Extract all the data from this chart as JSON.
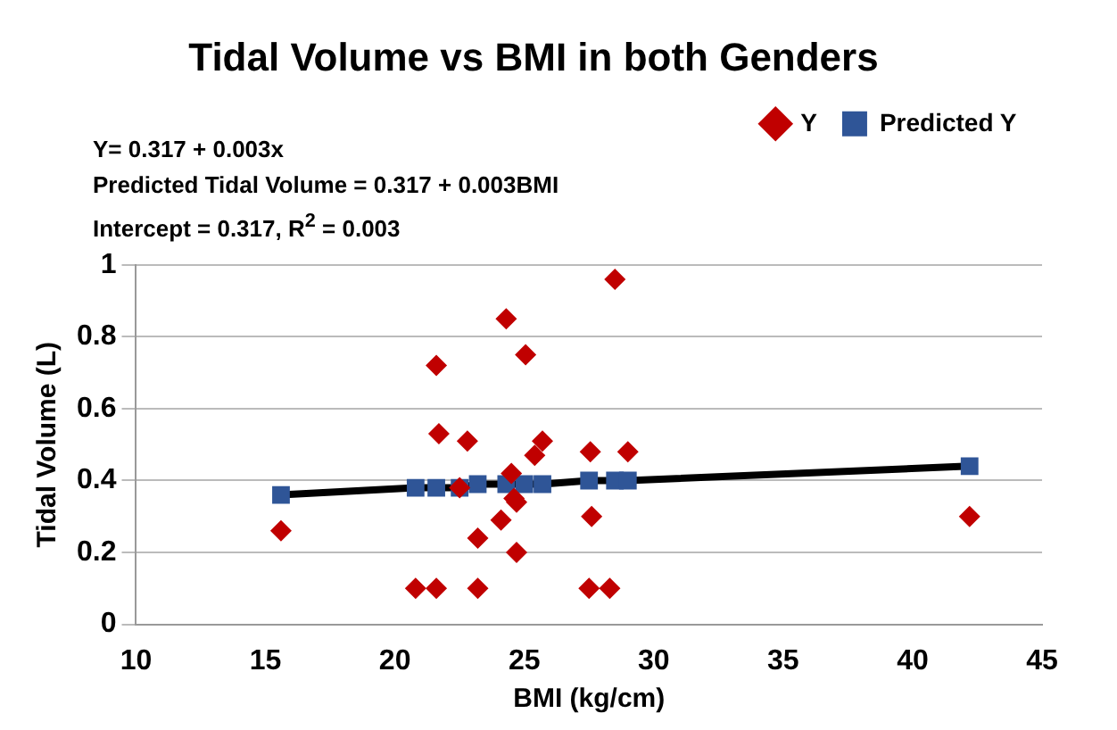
{
  "chart_data": {
    "type": "scatter",
    "title": "Tidal Volume vs BMI in both Genders",
    "xlabel": "BMI (kg/cm)",
    "ylabel": "Tidal Volume (L)",
    "annotations": [
      "Y= 0.317 + 0.003x",
      "Predicted Tidal Volume = 0.317 + 0.003BMI",
      "Intercept = 0.317, R$^{2}$ = 0.003"
    ],
    "xlim": [
      10,
      45
    ],
    "xticks": [
      10,
      15,
      20,
      25,
      30,
      35,
      40,
      45
    ],
    "ylim": [
      0,
      1
    ],
    "yticks": [
      0,
      0.2,
      0.4,
      0.6,
      0.8,
      1
    ],
    "grid": "y",
    "legend": "top right",
    "series": [
      {
        "name": "Y",
        "color": "#c00000",
        "marker": "diamond",
        "x": [
          15.6,
          21.6,
          21.7,
          22.8,
          22.5,
          23.2,
          20.8,
          21.6,
          23.2,
          24.3,
          25.05,
          25.7,
          25.4,
          24.5,
          24.6,
          24.7,
          24.1,
          24.7,
          27.55,
          29.0,
          27.6,
          27.5,
          28.3,
          28.5,
          42.2
        ],
        "values": [
          0.26,
          0.72,
          0.53,
          0.51,
          0.38,
          0.24,
          0.1,
          0.1,
          0.1,
          0.85,
          0.75,
          0.51,
          0.47,
          0.42,
          0.35,
          0.34,
          0.29,
          0.2,
          0.48,
          0.48,
          0.3,
          0.1,
          0.1,
          0.96,
          0.3
        ]
      },
      {
        "name": "Predicted Y",
        "type": "line",
        "color": "#2f5597",
        "marker": "square",
        "line_style": "solid",
        "x": [
          15.6,
          20.8,
          21.6,
          22.5,
          23.2,
          24.3,
          25.0,
          25.7,
          27.5,
          28.5,
          29.0,
          42.2
        ],
        "values": [
          0.36,
          0.38,
          0.38,
          0.38,
          0.39,
          0.39,
          0.39,
          0.39,
          0.4,
          0.4,
          0.4,
          0.44
        ]
      }
    ]
  }
}
